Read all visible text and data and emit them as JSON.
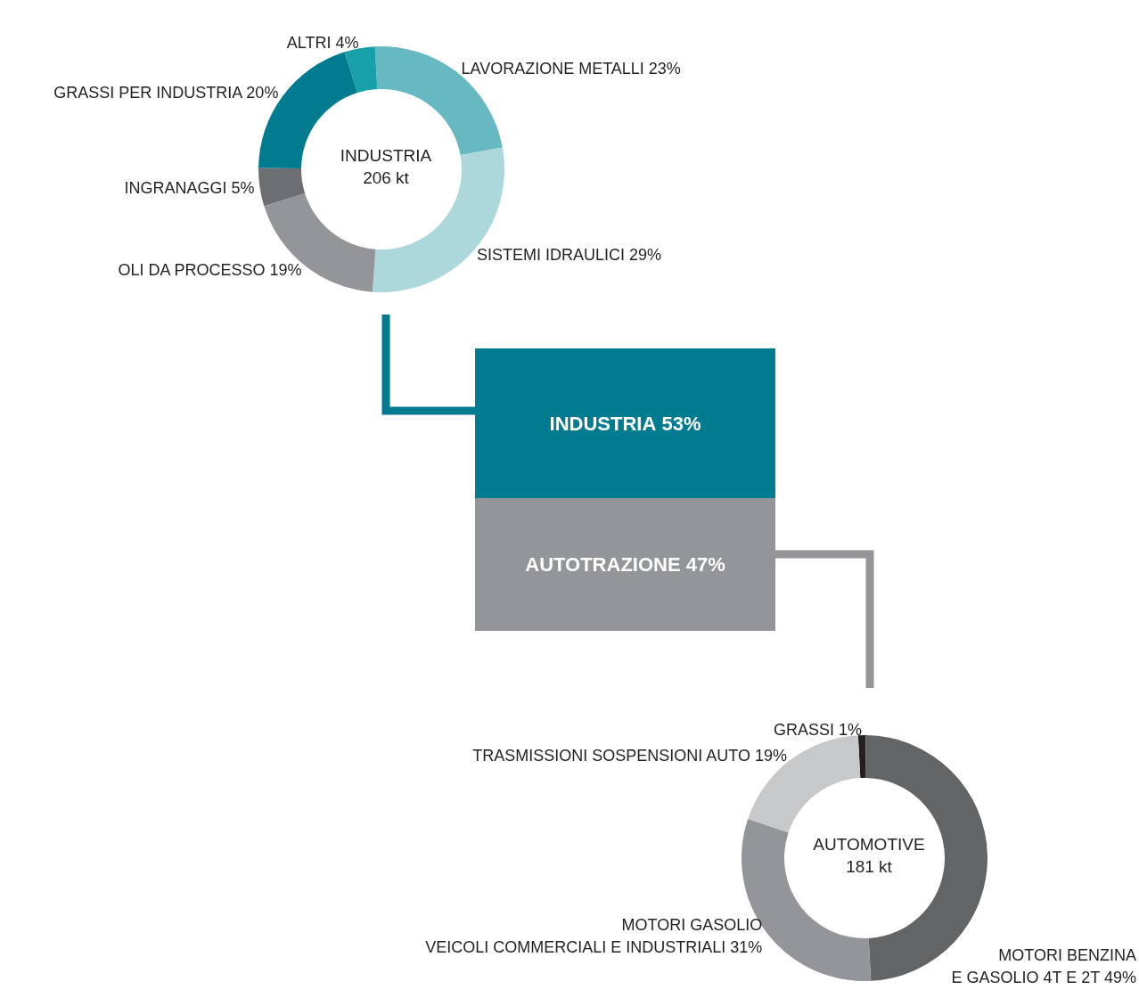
{
  "chart_data": [
    {
      "type": "donut",
      "title": "INDUSTRIA",
      "subtitle": "206 kt",
      "categories": [
        "LAVORAZIONE METALLI",
        "SISTEMI IDRAULICI",
        "OLI DA PROCESSO",
        "INGRANAGGI",
        "GRASSI PER INDUSTRIA",
        "ALTRI"
      ],
      "values": [
        23,
        29,
        19,
        5,
        20,
        4
      ],
      "value_labels": [
        "23%",
        "29%",
        "19%",
        "5%",
        "20%",
        "4%"
      ],
      "colors": [
        "#66b9c0",
        "#acd8dc",
        "#939598",
        "#6d6e71",
        "#007b8f",
        "#17a0aa"
      ]
    },
    {
      "type": "bar",
      "stacked": true,
      "categories": [
        null
      ],
      "series": [
        {
          "name": "AUTOTRAZIONE",
          "color": "#939598",
          "values": [
            47
          ],
          "value_labels": [
            "47%"
          ]
        },
        {
          "name": "INDUSTRIA",
          "color": "#007b8f",
          "values": [
            53
          ],
          "value_labels": [
            "53%"
          ]
        }
      ]
    },
    {
      "type": "donut",
      "title": "AUTOMOTIVE",
      "subtitle": "181 kt",
      "categories": [
        "GRASSI",
        "MOTORI BENZINA\nE GASOLIO 4T E 2T",
        "MOTORI GASOLIO\nVEICOLI COMMERCIALI E INDUSTRIALI",
        "TRASMISSIONI SOSPENSIONI AUTO"
      ],
      "values": [
        1,
        49,
        31,
        19
      ],
      "value_labels": [
        "1%",
        "49%",
        "31%",
        "19%"
      ],
      "colors": [
        "#231f20",
        "#636466",
        "#939598",
        "#c7c8ca"
      ]
    }
  ]
}
